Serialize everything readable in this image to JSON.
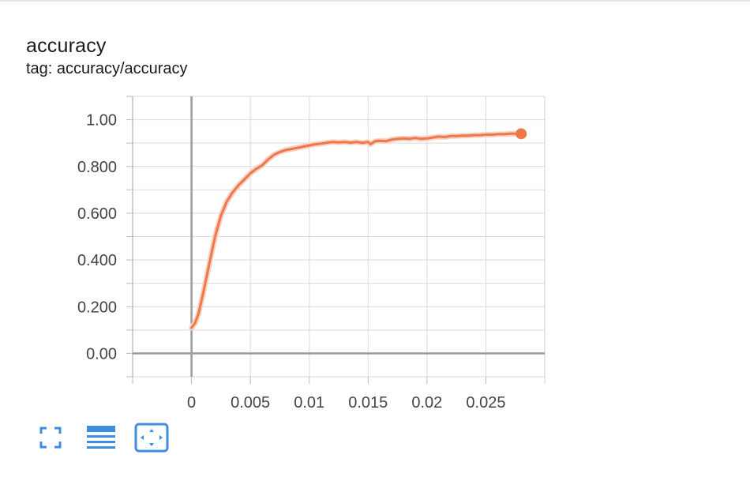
{
  "card": {
    "title": "accuracy",
    "tag": "tag: accuracy/accuracy"
  },
  "colors": {
    "series": "#f07848",
    "series_raw": "#f6d3c4",
    "grid": "#d9d9d9",
    "zero_axis": "#9b9b9b",
    "toolbar": "#3c8fe0"
  },
  "toolbar": {
    "buttons": [
      {
        "icon": "fullscreen-icon"
      },
      {
        "icon": "list-lines-icon"
      },
      {
        "icon": "fit-domain-icon"
      }
    ]
  },
  "chart_data": {
    "type": "line",
    "title": "",
    "xlabel": "",
    "ylabel": "",
    "xlim": [
      -0.005,
      0.03
    ],
    "ylim": [
      -0.1,
      1.1
    ],
    "grid": true,
    "x_ticks": [
      0,
      0.005,
      0.01,
      0.015,
      0.02,
      0.025
    ],
    "x_tick_labels": [
      "0",
      "0.005",
      "0.01",
      "0.015",
      "0.02",
      "0.025"
    ],
    "y_ticks": [
      0,
      0.2,
      0.4,
      0.6,
      0.8,
      1.0
    ],
    "y_tick_labels": [
      "0.00",
      "0.200",
      "0.400",
      "0.600",
      "0.800",
      "1.00"
    ],
    "series": [
      {
        "x": [
          0,
          0.0003,
          0.0006,
          0.001,
          0.0015,
          0.002,
          0.0025,
          0.003,
          0.0035,
          0.004,
          0.0045,
          0.005,
          0.0055,
          0.006,
          0.0065,
          0.007,
          0.0075,
          0.008,
          0.0085,
          0.009,
          0.0095,
          0.01,
          0.0105,
          0.011,
          0.0115,
          0.012,
          0.0125,
          0.013,
          0.0135,
          0.014,
          0.0145,
          0.015,
          0.0152,
          0.0156,
          0.016,
          0.0165,
          0.017,
          0.0175,
          0.018,
          0.0185,
          0.019,
          0.0195,
          0.02,
          0.0205,
          0.021,
          0.0215,
          0.022,
          0.0225,
          0.023,
          0.0235,
          0.024,
          0.0245,
          0.025,
          0.0255,
          0.026,
          0.0265,
          0.027,
          0.0275,
          0.028
        ],
        "y": [
          0.11,
          0.13,
          0.17,
          0.26,
          0.38,
          0.5,
          0.59,
          0.65,
          0.69,
          0.72,
          0.745,
          0.77,
          0.79,
          0.805,
          0.83,
          0.85,
          0.862,
          0.87,
          0.875,
          0.88,
          0.885,
          0.89,
          0.895,
          0.898,
          0.902,
          0.905,
          0.903,
          0.905,
          0.902,
          0.905,
          0.901,
          0.905,
          0.895,
          0.908,
          0.91,
          0.908,
          0.915,
          0.918,
          0.92,
          0.918,
          0.922,
          0.918,
          0.92,
          0.924,
          0.928,
          0.926,
          0.93,
          0.93,
          0.932,
          0.932,
          0.934,
          0.934,
          0.936,
          0.936,
          0.938,
          0.938,
          0.94,
          0.94,
          0.94
        ]
      }
    ]
  }
}
